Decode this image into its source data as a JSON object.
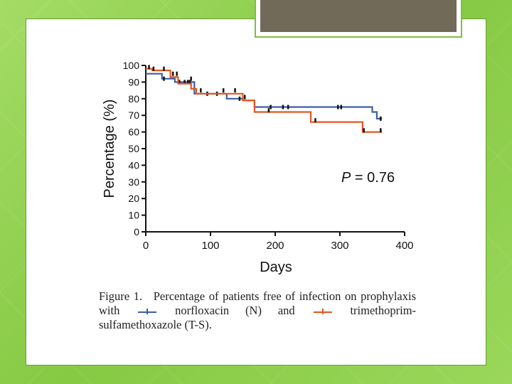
{
  "chart_data": {
    "type": "line",
    "subtype": "kaplan-meier-step",
    "title": "",
    "xlabel": "Days",
    "ylabel": "Percentage (%)",
    "xlim": [
      0,
      400
    ],
    "ylim": [
      0,
      100
    ],
    "x_ticks": [
      0,
      100,
      200,
      300,
      400
    ],
    "y_ticks": [
      0,
      10,
      20,
      30,
      40,
      50,
      60,
      70,
      80,
      90,
      100
    ],
    "x_tick_labels": [
      "0",
      "100",
      "200",
      "300",
      "400"
    ],
    "y_tick_labels": [
      "0",
      "10",
      "20",
      "30",
      "40",
      "50",
      "60",
      "70",
      "80",
      "90",
      "100"
    ],
    "annotation": {
      "p_symbol": "P",
      "p_rest": " = 0.76"
    },
    "series": [
      {
        "name": "norfloxacin (N)",
        "color": "#3a5fa8",
        "steps": [
          [
            0,
            95
          ],
          [
            25,
            95
          ],
          [
            25,
            92
          ],
          [
            45,
            92
          ],
          [
            45,
            90
          ],
          [
            75,
            90
          ],
          [
            75,
            83
          ],
          [
            125,
            83
          ],
          [
            125,
            80
          ],
          [
            150,
            80
          ],
          [
            150,
            79
          ],
          [
            168,
            79
          ],
          [
            168,
            75
          ],
          [
            350,
            75
          ],
          [
            350,
            72
          ],
          [
            357,
            72
          ],
          [
            357,
            68
          ],
          [
            365,
            68
          ]
        ],
        "censored": [
          [
            28,
            92
          ],
          [
            52,
            90
          ],
          [
            60,
            90
          ],
          [
            65,
            90
          ],
          [
            68,
            90
          ],
          [
            95,
            83
          ],
          [
            110,
            83
          ],
          [
            145,
            80
          ],
          [
            193,
            75
          ],
          [
            212,
            75
          ],
          [
            220,
            75
          ],
          [
            297,
            75
          ],
          [
            302,
            75
          ],
          [
            363,
            68
          ]
        ]
      },
      {
        "name": "trimethoprim-sulfamethoxazole (T-S)",
        "color": "#e8541e",
        "steps": [
          [
            0,
            98
          ],
          [
            10,
            98
          ],
          [
            10,
            97
          ],
          [
            38,
            97
          ],
          [
            38,
            93
          ],
          [
            50,
            93
          ],
          [
            50,
            89
          ],
          [
            70,
            89
          ],
          [
            70,
            86
          ],
          [
            78,
            86
          ],
          [
            78,
            83
          ],
          [
            150,
            83
          ],
          [
            150,
            79
          ],
          [
            168,
            79
          ],
          [
            168,
            72
          ],
          [
            255,
            72
          ],
          [
            255,
            66
          ],
          [
            335,
            66
          ],
          [
            335,
            60
          ],
          [
            365,
            60
          ]
        ],
        "censored": [
          [
            5,
            99
          ],
          [
            12,
            98
          ],
          [
            28,
            98
          ],
          [
            42,
            95
          ],
          [
            48,
            95
          ],
          [
            70,
            92
          ],
          [
            85,
            85
          ],
          [
            120,
            85
          ],
          [
            138,
            85
          ],
          [
            153,
            81
          ],
          [
            190,
            73
          ],
          [
            262,
            67
          ],
          [
            337,
            61
          ],
          [
            363,
            61
          ]
        ]
      }
    ]
  },
  "caption": {
    "label": "Figure 1.",
    "text_1": "Percentage of patients free of infection on prophylaxis with",
    "series_1_name": "norfloxacin (N)",
    "and_word": "and",
    "series_2_name": "trimethoprim-sulfamethoxazole (T-S)."
  }
}
